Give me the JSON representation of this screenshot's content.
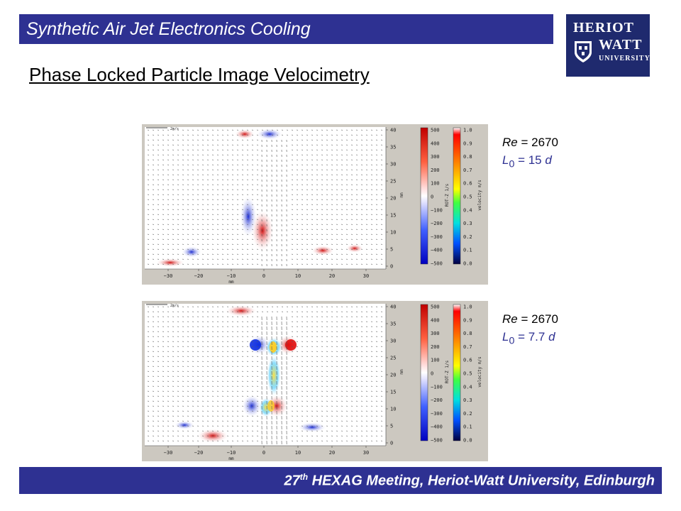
{
  "header": {
    "title": "Synthetic Air Jet Electronics Cooling"
  },
  "logo": {
    "line1": "HERIOT",
    "line2": "WATT",
    "line3": "UNIVERSITY"
  },
  "slide": {
    "title": "Phase Locked Particle Image Velocimetry"
  },
  "plot_axes": {
    "x_ticks": [
      "−30",
      "−20",
      "−10",
      "0",
      "10",
      "20",
      "30"
    ],
    "x_label": "mm",
    "y_ticks": [
      "0",
      "5",
      "10",
      "15",
      "20",
      "25",
      "30",
      "35",
      "40"
    ],
    "y_label": "mm",
    "scale_label": "2m/s",
    "rot_ticks": [
      "500",
      "400",
      "300",
      "200",
      "100",
      "0",
      "−100",
      "−200",
      "−300",
      "−400",
      "−500"
    ],
    "rot_label": "ROT-Z 1/s",
    "vel_ticks": [
      "1.0",
      "0.9",
      "0.8",
      "0.7",
      "0.6",
      "0.5",
      "0.4",
      "0.3",
      "0.2",
      "0.1",
      "0.0"
    ],
    "vel_label": "velocity m/s"
  },
  "cases": [
    {
      "re_label": "Re",
      "re_value": "= 2670",
      "l_symbol": "L",
      "l_subscript": "0",
      "l_value": "= 15",
      "l_unit": "d"
    },
    {
      "re_label": "Re",
      "re_value": "= 2670",
      "l_symbol": "L",
      "l_subscript": "0",
      "l_value": "= 7.7",
      "l_unit": "d"
    }
  ],
  "footer": {
    "ordinal": "27",
    "ordinal_suffix": "th",
    "text": "HEXAG Meeting, Heriot-Watt University, Edinburgh"
  },
  "colors": {
    "brand_blue": "#2e3192",
    "logo_blue": "#1f2a6e"
  }
}
